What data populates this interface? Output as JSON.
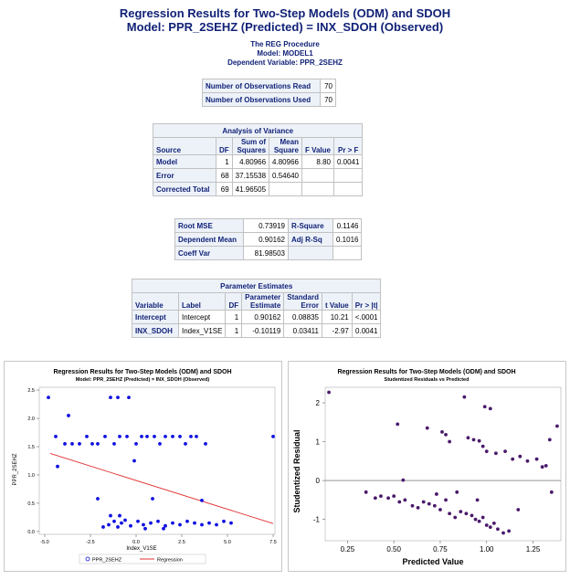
{
  "header": {
    "title_line1": "Regression Results for Two-Step Models (ODM) and SDOH",
    "title_line2": "Model: PPR_2SEHZ (Predicted) = INX_SDOH (Observed)",
    "proc_name": "The REG Procedure",
    "model_line": "Model: MODEL1",
    "depvar_line": "Dependent Variable: PPR_2SEHZ"
  },
  "observations": [
    {
      "label": "Number of Observations Read",
      "value": "70"
    },
    {
      "label": "Number of Observations Used",
      "value": "70"
    }
  ],
  "anova": {
    "caption": "Analysis of Variance",
    "headers": {
      "source": "Source",
      "df": "DF",
      "ss_1": "Sum of",
      "ss_2": "Squares",
      "ms_1": "Mean",
      "ms_2": "Square",
      "f": "F Value",
      "p": "Pr > F"
    },
    "rows": [
      {
        "source": "Model",
        "df": "1",
        "ss": "4.80966",
        "ms": "4.80966",
        "f": "8.80",
        "p": "0.0041"
      },
      {
        "source": "Error",
        "df": "68",
        "ss": "37.15538",
        "ms": "0.54640",
        "f": "",
        "p": ""
      },
      {
        "source": "Corrected Total",
        "df": "69",
        "ss": "41.96505",
        "ms": "",
        "f": "",
        "p": ""
      }
    ]
  },
  "fit": [
    {
      "label": "Root MSE",
      "value": "0.73919",
      "label2": "R-Square",
      "value2": "0.1146"
    },
    {
      "label": "Dependent Mean",
      "value": "0.90162",
      "label2": "Adj R-Sq",
      "value2": "0.1016"
    },
    {
      "label": "Coeff Var",
      "value": "81.98503",
      "label2": "",
      "value2": ""
    }
  ],
  "params": {
    "caption": "Parameter Estimates",
    "headers": {
      "variable": "Variable",
      "label": "Label",
      "df": "DF",
      "est_1": "Parameter",
      "est_2": "Estimate",
      "se_1": "Standard",
      "se_2": "Error",
      "t": "t Value",
      "p": "Pr > |t|"
    },
    "rows": [
      {
        "variable": "Intercept",
        "label": "Intercept",
        "df": "1",
        "est": "0.90162",
        "se": "0.08835",
        "t": "10.21",
        "p": "<.0001"
      },
      {
        "variable": "INX_SDOH",
        "label": "Index_V1SE",
        "df": "1",
        "est": "-0.10119",
        "se": "0.03411",
        "t": "-2.97",
        "p": "0.0041"
      }
    ]
  },
  "chart_data": [
    {
      "type": "scatter",
      "title": "Regression Results for Two-Step Models (ODM) and SDOH",
      "subtitle": "Model: PPR_2SEHZ (Predicted) = INX_SDOH (Observed)",
      "xlabel": "Index_V1SE",
      "ylabel": "PPR_2SEHZ",
      "xlim": [
        -5.3,
        7.6
      ],
      "ylim": [
        -0.05,
        2.55
      ],
      "xticks": [
        -5.0,
        -2.5,
        0.0,
        2.5,
        5.0,
        7.5
      ],
      "xtick_labels": [
        "-5.0",
        "-2.5",
        "0.0",
        "2.5",
        "5.0",
        "7.5"
      ],
      "yticks": [
        0.0,
        0.5,
        1.0,
        1.5,
        2.0,
        2.5
      ],
      "ytick_labels": [
        "0.0",
        "0.5",
        "1.0",
        "1.5",
        "2.0",
        "2.5"
      ],
      "point_color": "#1010e0",
      "line_color": "#e03030",
      "legend": [
        {
          "name": "PPR_2SEHZ",
          "kind": "marker"
        },
        {
          "name": "Regression",
          "kind": "line"
        }
      ],
      "legend_position": "bottom",
      "points": [
        [
          -4.8,
          2.37
        ],
        [
          -3.7,
          2.05
        ],
        [
          -1.4,
          2.37
        ],
        [
          -1.0,
          2.37
        ],
        [
          -0.4,
          2.37
        ],
        [
          -4.4,
          1.68
        ],
        [
          -3.9,
          1.55
        ],
        [
          -3.5,
          1.55
        ],
        [
          -3.1,
          1.55
        ],
        [
          -2.7,
          1.68
        ],
        [
          -2.4,
          1.55
        ],
        [
          -2.1,
          1.55
        ],
        [
          -1.7,
          1.68
        ],
        [
          -1.2,
          1.55
        ],
        [
          -0.9,
          1.68
        ],
        [
          -0.5,
          1.68
        ],
        [
          0.0,
          1.55
        ],
        [
          0.3,
          1.68
        ],
        [
          0.6,
          1.68
        ],
        [
          1.0,
          1.68
        ],
        [
          1.3,
          1.55
        ],
        [
          1.6,
          1.68
        ],
        [
          2.0,
          1.68
        ],
        [
          2.4,
          1.68
        ],
        [
          2.7,
          1.55
        ],
        [
          3.0,
          1.68
        ],
        [
          3.3,
          1.68
        ],
        [
          3.8,
          1.55
        ],
        [
          7.5,
          1.68
        ],
        [
          -4.3,
          1.15
        ],
        [
          -0.1,
          1.25
        ],
        [
          -2.1,
          0.58
        ],
        [
          0.9,
          0.58
        ],
        [
          3.6,
          0.55
        ],
        [
          -1.8,
          0.08
        ],
        [
          -1.5,
          0.12
        ],
        [
          -1.2,
          0.18
        ],
        [
          -1.0,
          0.08
        ],
        [
          -0.8,
          0.15
        ],
        [
          -0.6,
          0.2
        ],
        [
          -0.3,
          0.1
        ],
        [
          0.1,
          0.18
        ],
        [
          0.4,
          0.12
        ],
        [
          0.8,
          0.15
        ],
        [
          1.2,
          0.18
        ],
        [
          1.6,
          0.1
        ],
        [
          2.0,
          0.15
        ],
        [
          2.4,
          0.12
        ],
        [
          2.8,
          0.18
        ],
        [
          3.2,
          0.15
        ],
        [
          3.6,
          0.12
        ],
        [
          4.0,
          0.15
        ],
        [
          4.4,
          0.12
        ],
        [
          4.8,
          0.18
        ],
        [
          5.2,
          0.15
        ],
        [
          -1.4,
          0.28
        ],
        [
          -0.9,
          0.28
        ],
        [
          0.5,
          0.05
        ],
        [
          1.5,
          0.05
        ]
      ],
      "regression_line": [
        [
          -4.7,
          1.38
        ],
        [
          7.5,
          0.14
        ]
      ]
    },
    {
      "type": "scatter",
      "title": "Regression Results for Two-Step Models (ODM) and SDOH",
      "subtitle": "Studentized Residuals vs Predicted",
      "xlabel": "Predicted Value",
      "ylabel": "Studentized Residual",
      "xlim": [
        0.13,
        1.4
      ],
      "ylim": [
        -1.55,
        2.4
      ],
      "xticks": [
        0.25,
        0.5,
        0.75,
        1.0,
        1.25
      ],
      "xtick_labels": [
        "0.25",
        "0.50",
        "0.75",
        "1.00",
        "1.25"
      ],
      "yticks": [
        -1,
        0,
        1,
        2
      ],
      "ytick_labels": [
        "-1",
        "0",
        "1",
        "2"
      ],
      "reference_line_y": 0,
      "point_color": "#4a1a6a",
      "points": [
        [
          0.15,
          2.27
        ],
        [
          0.52,
          1.45
        ],
        [
          0.55,
          0.01
        ],
        [
          0.68,
          1.35
        ],
        [
          0.76,
          1.25
        ],
        [
          0.78,
          1.18
        ],
        [
          0.8,
          1.0
        ],
        [
          0.88,
          2.15
        ],
        [
          0.9,
          1.1
        ],
        [
          0.93,
          1.05
        ],
        [
          0.96,
          1.02
        ],
        [
          0.99,
          1.9
        ],
        [
          1.02,
          1.85
        ],
        [
          1.0,
          0.75
        ],
        [
          1.05,
          0.7
        ],
        [
          1.1,
          0.75
        ],
        [
          1.14,
          0.55
        ],
        [
          1.18,
          0.62
        ],
        [
          1.22,
          0.5
        ],
        [
          1.27,
          0.55
        ],
        [
          1.3,
          0.35
        ],
        [
          1.32,
          0.38
        ],
        [
          1.34,
          1.05
        ],
        [
          1.38,
          1.4
        ],
        [
          0.98,
          0.88
        ],
        [
          0.35,
          -0.3
        ],
        [
          0.4,
          -0.45
        ],
        [
          0.43,
          -0.4
        ],
        [
          0.47,
          -0.45
        ],
        [
          0.5,
          -0.4
        ],
        [
          0.53,
          -0.55
        ],
        [
          0.56,
          -0.5
        ],
        [
          0.6,
          -0.65
        ],
        [
          0.63,
          -0.7
        ],
        [
          0.66,
          -0.55
        ],
        [
          0.69,
          -0.6
        ],
        [
          0.72,
          -0.65
        ],
        [
          0.75,
          -0.75
        ],
        [
          0.78,
          -0.5
        ],
        [
          0.8,
          -0.85
        ],
        [
          0.83,
          -0.95
        ],
        [
          0.86,
          -0.8
        ],
        [
          0.89,
          -0.85
        ],
        [
          0.92,
          -0.9
        ],
        [
          0.94,
          -1.0
        ],
        [
          0.96,
          -1.05
        ],
        [
          0.98,
          -0.95
        ],
        [
          1.0,
          -1.15
        ],
        [
          1.02,
          -1.2
        ],
        [
          1.04,
          -1.1
        ],
        [
          1.06,
          -1.25
        ],
        [
          1.09,
          -1.35
        ],
        [
          1.12,
          -1.3
        ],
        [
          1.17,
          -0.75
        ],
        [
          1.35,
          -0.3
        ],
        [
          0.84,
          -0.3
        ],
        [
          0.95,
          -0.5
        ],
        [
          0.73,
          -0.35
        ]
      ]
    }
  ]
}
